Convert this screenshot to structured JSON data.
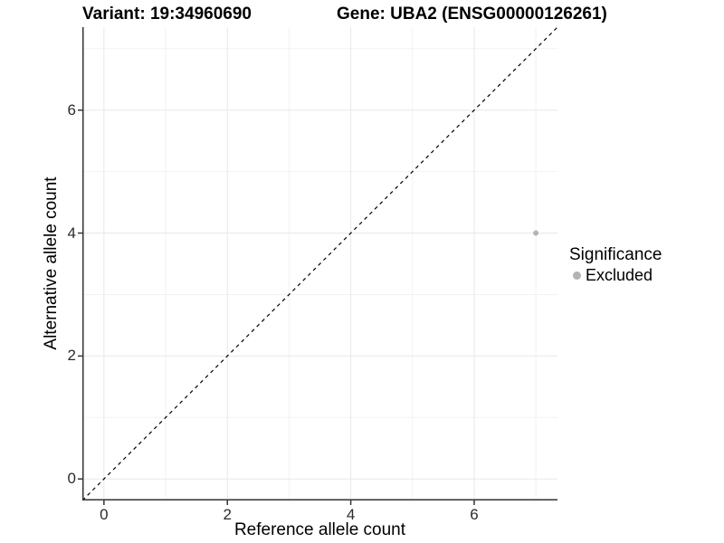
{
  "chart_data": {
    "type": "scatter",
    "title_left": "Variant: 19:34960690",
    "title_right": "Gene: UBA2 (ENSG00000126261)",
    "xlabel": "Reference allele count",
    "ylabel": "Alternative allele count",
    "xlim": [
      -0.35,
      7.35
    ],
    "ylim": [
      -0.35,
      7.35
    ],
    "x_major_ticks": [
      0,
      2,
      4,
      6
    ],
    "y_major_ticks": [
      0,
      2,
      4,
      6
    ],
    "x_minor_gridlines": [
      1,
      3,
      5,
      7
    ],
    "y_minor_gridlines": [
      1,
      3,
      5,
      7
    ],
    "grid": true,
    "identity_line": {
      "slope": 1,
      "intercept": 0,
      "style": "dashed",
      "color": "#000000"
    },
    "series": [
      {
        "name": "Excluded",
        "color": "#b4b4b4",
        "points": [
          {
            "x": 7,
            "y": 4
          }
        ]
      }
    ],
    "legend": {
      "title": "Significance",
      "position": "right",
      "entries": [
        {
          "label": "Excluded",
          "color": "#b4b4b4"
        }
      ]
    },
    "colors": {
      "background": "#ffffff",
      "grid_major": "#e8e8e8",
      "grid_minor": "#f2f2f2",
      "axis_line": "#333333",
      "tick_text": "#2b2b2b",
      "title_text": "#000000"
    }
  }
}
